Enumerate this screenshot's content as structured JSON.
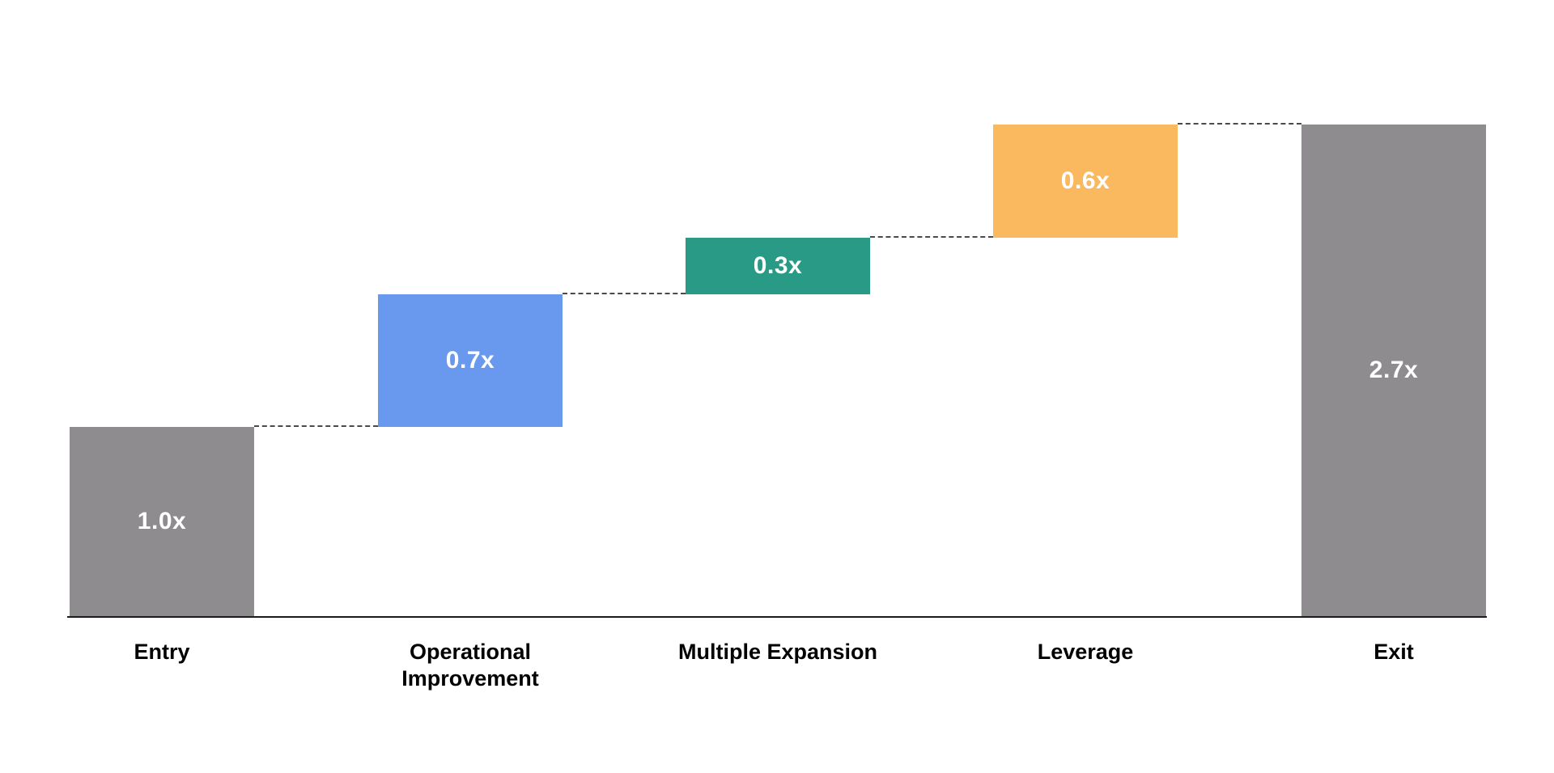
{
  "chart_data": {
    "type": "bar",
    "subtype": "waterfall",
    "title": "",
    "xlabel": "",
    "ylabel": "",
    "unit_suffix": "x",
    "ylim": [
      0,
      2.8
    ],
    "grid": false,
    "legend": false,
    "background": "#FFFFFF",
    "axis_color": "#1B1B1B",
    "connector_style": "dashed",
    "connector_color": "#4A4A4A",
    "value_label_color": "#FFFFFF",
    "category_label_color": "#000000",
    "categories": [
      "Entry",
      "Operational Improvement",
      "Multiple Expansion",
      "Leverage",
      "Exit"
    ],
    "series": [
      {
        "category": "Entry",
        "value": 1.0,
        "label": "1.0x",
        "role": "base",
        "color": "#8E8C8F"
      },
      {
        "category": "Operational Improvement",
        "value": 0.7,
        "label": "0.7x",
        "role": "increase",
        "color": "#6899EF"
      },
      {
        "category": "Multiple Expansion",
        "value": 0.3,
        "label": "0.3x",
        "role": "increase",
        "color": "#299A85"
      },
      {
        "category": "Leverage",
        "value": 0.6,
        "label": "0.6x",
        "role": "increase",
        "color": "#FBB95F"
      },
      {
        "category": "Exit",
        "value": 2.7,
        "label": "2.7x",
        "role": "total",
        "color": "#8E8C8F"
      }
    ]
  }
}
